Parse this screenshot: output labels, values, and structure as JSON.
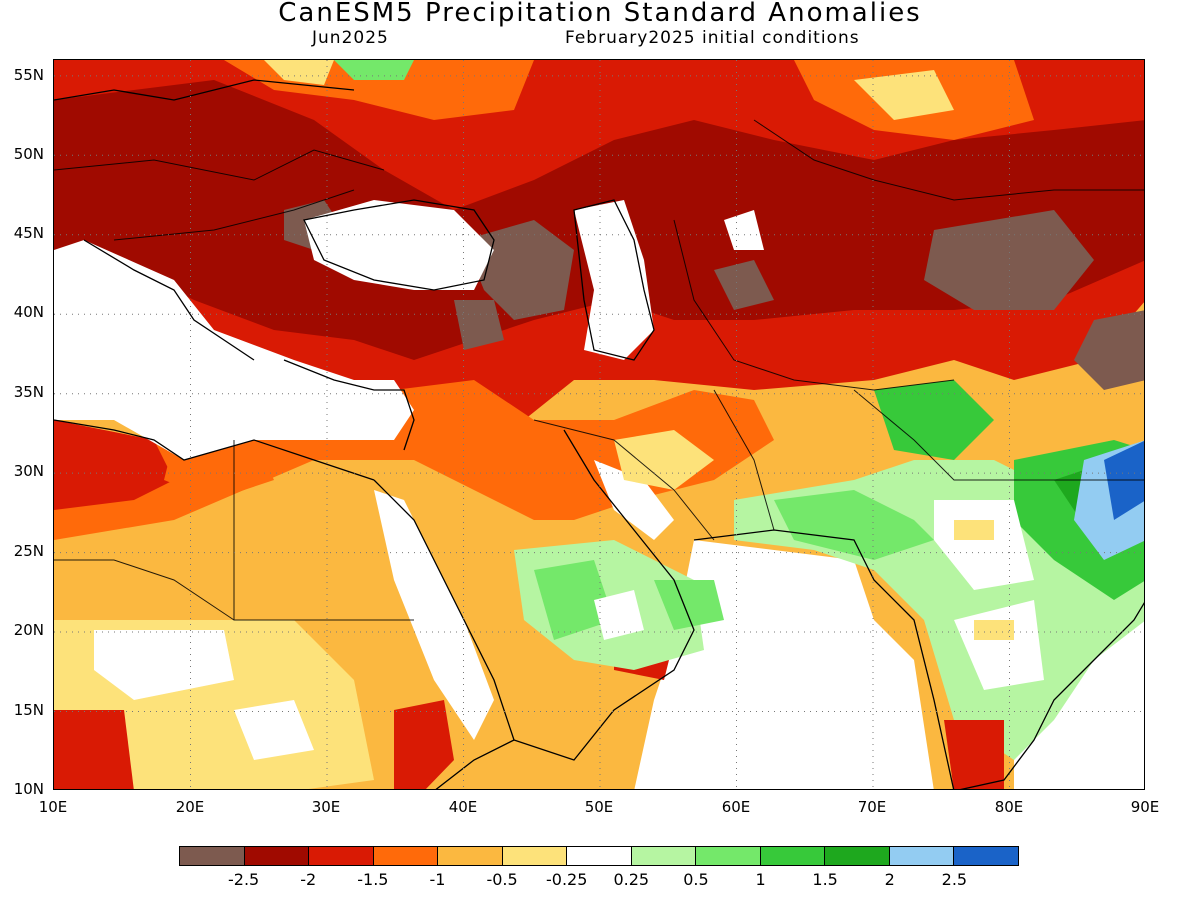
{
  "header": {
    "title": "CanESM5 Precipitation Standard Anomalies",
    "month": "Jun2025",
    "init": "February2025 initial conditions"
  },
  "map": {
    "lon_range": [
      10,
      90
    ],
    "lat_range": [
      10,
      56
    ],
    "lat_ticks": [
      "55N",
      "50N",
      "45N",
      "40N",
      "35N",
      "30N",
      "25N",
      "20N",
      "15N",
      "10N"
    ],
    "lon_ticks": [
      "10E",
      "20E",
      "30E",
      "40E",
      "50E",
      "60E",
      "70E",
      "80E",
      "90E"
    ],
    "gridlines": "dotted",
    "regions": "Europe, North Africa, Middle East, Central and South Asia"
  },
  "legend": {
    "colors": [
      "#7d5a4f",
      "#a00a00",
      "#d91a04",
      "#ff6a0a",
      "#fbb840",
      "#fde27a",
      "#ffffff",
      "#b6f5a2",
      "#74e86a",
      "#37c93a",
      "#1ea81e",
      "#93ccf2",
      "#1a63c8"
    ],
    "labels": [
      "-2.5",
      "-2",
      "-1.5",
      "-1",
      "-0.5",
      "-0.25",
      "0.25",
      "0.5",
      "1",
      "1.5",
      "2",
      "2.5"
    ]
  }
}
